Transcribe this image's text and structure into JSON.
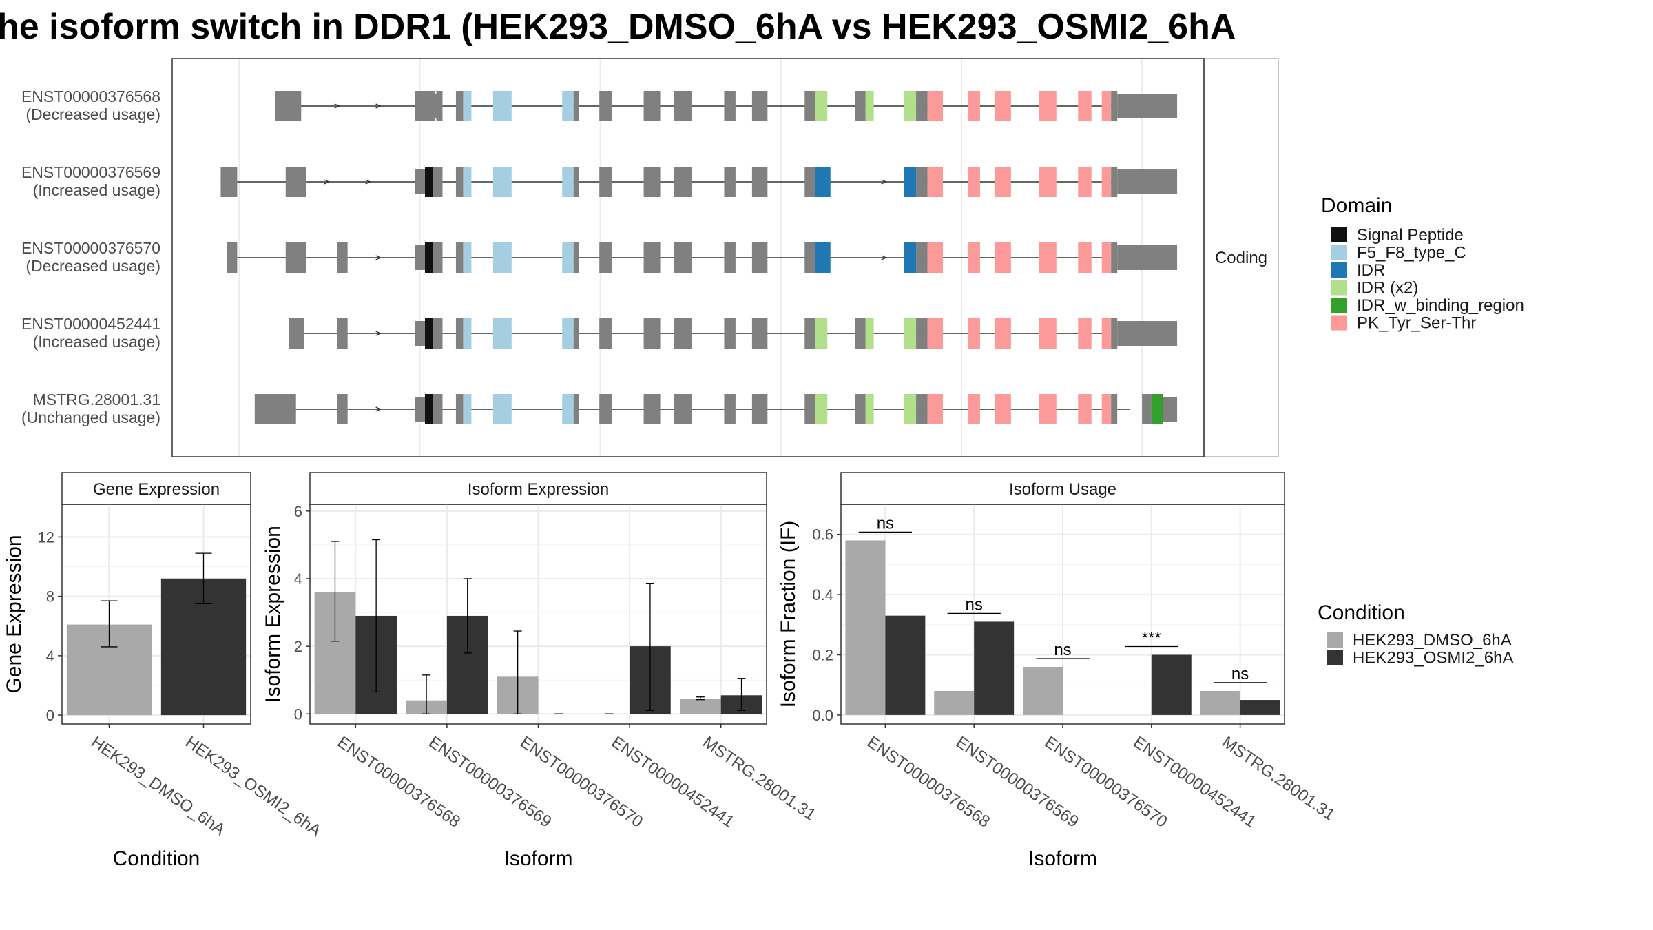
{
  "title": "he isoform switch in DDR1 (HEK293_DMSO_6hA vs HEK293_OSMI2_6hA",
  "colors": {
    "exon": "#808080",
    "cond_dmso": "#a9a9a9",
    "cond_osmi": "#333333",
    "Signal Peptide": "#111111",
    "F5_F8_type_C": "#a6cee3",
    "IDR": "#1f78b4",
    "IDR (x2)": "#b2df8a",
    "IDR_w_binding_region": "#33a02c",
    "PK_Tyr_Ser-Thr": "#fb9a99"
  },
  "transcripts": {
    "strip_label": "Coding",
    "rows": [
      {
        "id": "ENST00000376568",
        "usage": "(Decreased usage)",
        "left_exons": [
          [
            0.1,
            0.125
          ],
          [
            0.235,
            0.255
          ]
        ],
        "arrows": [
          0.16,
          0.2
        ],
        "sp": false,
        "idr": false,
        "idrx2": true,
        "binding": false,
        "tail": "long"
      },
      {
        "id": "ENST00000376569",
        "usage": "(Increased usage)",
        "left_exons": [
          [
            0.047,
            0.063
          ],
          [
            0.11,
            0.13
          ]
        ],
        "arrows": [
          0.15,
          0.19
        ],
        "sp": true,
        "idr": true,
        "idrx2": false,
        "binding": false,
        "tail": "long",
        "skip768": true
      },
      {
        "id": "ENST00000376570",
        "usage": "(Decreased usage)",
        "left_exons": [
          [
            0.053,
            0.063
          ],
          [
            0.11,
            0.13
          ],
          [
            0.16,
            0.17
          ]
        ],
        "arrows": [
          0.2
        ],
        "sp": true,
        "idr": true,
        "idrx2": false,
        "binding": false,
        "tail": "long",
        "skip768": true
      },
      {
        "id": "ENST00000452441",
        "usage": "(Increased usage)",
        "left_exons": [
          [
            0.113,
            0.128
          ],
          [
            0.16,
            0.17
          ]
        ],
        "arrows": [
          0.2
        ],
        "sp": true,
        "idr": false,
        "idrx2": true,
        "binding": false,
        "tail": "long"
      },
      {
        "id": "MSTRG.28001.31",
        "usage": "(Unchanged usage)",
        "left_exons": [
          [
            0.08,
            0.12
          ],
          [
            0.16,
            0.17
          ]
        ],
        "arrows": [
          0.2
        ],
        "sp": true,
        "idr": false,
        "idrx2": true,
        "binding": true,
        "tail": "short"
      }
    ]
  },
  "legend_domain": {
    "title": "Domain",
    "items": [
      "Signal Peptide",
      "F5_F8_type_C",
      "IDR",
      "IDR (x2)",
      "IDR_w_binding_region",
      "PK_Tyr_Ser-Thr"
    ]
  },
  "legend_condition": {
    "title": "Condition",
    "items": [
      "HEK293_DMSO_6hA",
      "HEK293_OSMI2_6hA"
    ]
  },
  "chart_data": [
    {
      "type": "bar",
      "title": "Gene Expression",
      "xlabel": "Condition",
      "ylabel": "Gene Expression",
      "ylim": [
        -0.6,
        14.2
      ],
      "yticks": [
        0,
        4,
        8,
        12
      ],
      "categories": [
        "HEK293_DMSO_6hA",
        "HEK293_OSMI2_6hA"
      ],
      "values": [
        6.1,
        9.2
      ],
      "err_low": [
        4.6,
        7.5
      ],
      "err_high": [
        7.7,
        10.9
      ]
    },
    {
      "type": "bar",
      "title": "Isoform Expression",
      "xlabel": "Isoform",
      "ylabel": "Isoform Expression",
      "ylim": [
        -0.3,
        6.2
      ],
      "yticks": [
        0,
        2,
        4,
        6
      ],
      "categories": [
        "ENST00000376568",
        "ENST00000376569",
        "ENST00000376570",
        "ENST00000452441",
        "MSTRG.28001.31"
      ],
      "series": [
        {
          "name": "HEK293_DMSO_6hA",
          "values": [
            3.6,
            0.4,
            1.1,
            0.0,
            0.45
          ],
          "err_low": [
            2.15,
            0.0,
            0.0,
            0.0,
            0.42
          ],
          "err_high": [
            5.1,
            1.15,
            2.45,
            0.0,
            0.5
          ]
        },
        {
          "name": "HEK293_OSMI2_6hA",
          "values": [
            2.9,
            2.9,
            0.0,
            2.0,
            0.55
          ],
          "err_low": [
            0.65,
            1.8,
            0.0,
            0.1,
            0.1
          ],
          "err_high": [
            5.15,
            4.0,
            0.0,
            3.85,
            1.05
          ]
        }
      ]
    },
    {
      "type": "bar",
      "title": "Isoform Usage",
      "xlabel": "Isoform",
      "ylabel": "Isoform Fraction (IF)",
      "ylim": [
        -0.03,
        0.7
      ],
      "yticks": [
        0.0,
        0.2,
        0.4,
        0.6
      ],
      "ytick_labels": [
        "0.0",
        "0.2",
        "0.4",
        "0.6"
      ],
      "categories": [
        "ENST00000376568",
        "ENST00000376569",
        "ENST00000376570",
        "ENST00000452441",
        "MSTRG.28001.31"
      ],
      "series": [
        {
          "name": "HEK293_DMSO_6hA",
          "values": [
            0.58,
            0.08,
            0.16,
            0.0,
            0.08
          ]
        },
        {
          "name": "HEK293_OSMI2_6hA",
          "values": [
            0.33,
            0.31,
            0.0,
            0.2,
            0.05
          ]
        }
      ],
      "annotations": [
        "ns",
        "ns",
        "ns",
        "***",
        "ns"
      ]
    }
  ]
}
